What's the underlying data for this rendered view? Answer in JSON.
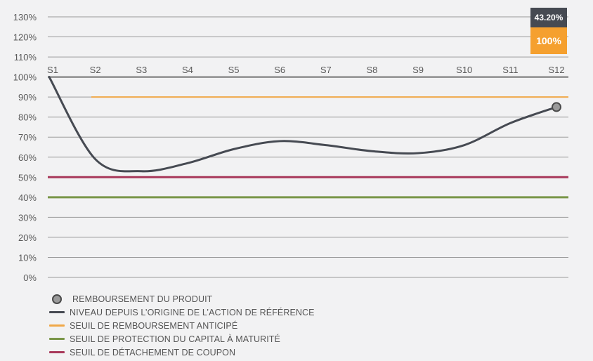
{
  "chart_data": {
    "type": "line",
    "title": "",
    "xlabel": "",
    "ylabel": "",
    "categories": [
      "S1",
      "S2",
      "S3",
      "S4",
      "S5",
      "S6",
      "S7",
      "S8",
      "S9",
      "S10",
      "S11",
      "S12"
    ],
    "y_ticks": [
      "130%",
      "120%",
      "110%",
      "100%",
      "90%",
      "80%",
      "70%",
      "60%",
      "50%",
      "40%",
      "30%",
      "20%",
      "10%",
      "0%"
    ],
    "ylim": [
      0,
      130
    ],
    "grid": true,
    "series": [
      {
        "name": "NIVEAU DEPUIS L'ORIGINE DE L'ACTION DE RÉFÉRENCE",
        "color": "#464a52",
        "values": [
          100,
          59,
          53,
          57,
          64,
          68,
          66,
          63,
          62,
          66,
          77,
          85
        ]
      },
      {
        "name": "SEUIL DE REMBOURSEMENT ANTICIPÉ",
        "color": "#f0a848",
        "values": [
          null,
          90,
          90,
          90,
          90,
          90,
          90,
          90,
          90,
          90,
          90,
          90
        ]
      },
      {
        "name": "SEUIL DE PROTECTION DU CAPITAL À MATURITÉ",
        "color": "#7a9648",
        "values": [
          40,
          40,
          40,
          40,
          40,
          40,
          40,
          40,
          40,
          40,
          40,
          40
        ]
      },
      {
        "name": "SEUIL DE DÉTACHEMENT DE COUPON",
        "color": "#a8385a",
        "values": [
          50,
          50,
          50,
          50,
          50,
          50,
          50,
          50,
          50,
          50,
          50,
          50
        ]
      }
    ],
    "markers": [
      {
        "name": "REMBOURSEMENT DU PRODUIT",
        "category": "S12",
        "value": 85,
        "color": "#9a9a9a"
      }
    ],
    "annotations": [
      {
        "text": "43.20%",
        "position": "top-right",
        "background": "#464a52"
      },
      {
        "text": "100%",
        "position": "top-right",
        "background": "#f5a02f"
      }
    ],
    "legend_position": "bottom-left"
  },
  "badges": {
    "gain": "43.20%",
    "capital": "100%"
  },
  "legend": {
    "items": [
      {
        "label": "REMBOURSEMENT DU PRODUIT",
        "kind": "dot",
        "color": "#9a9a9a"
      },
      {
        "label": "NIVEAU DEPUIS L’ORIGINE DE L’ACTION DE RÉFÉRENCE",
        "kind": "line",
        "color": "#464a52"
      },
      {
        "label": "SEUIL DE REMBOURSEMENT ANTICIPÉ",
        "kind": "line",
        "color": "#f0a848"
      },
      {
        "label": "SEUIL DE PROTECTION DU CAPITAL À MATURITÉ",
        "kind": "line",
        "color": "#7a9648"
      },
      {
        "label": "SEUIL DE DÉTACHEMENT DE COUPON",
        "kind": "line",
        "color": "#a8385a"
      }
    ]
  }
}
